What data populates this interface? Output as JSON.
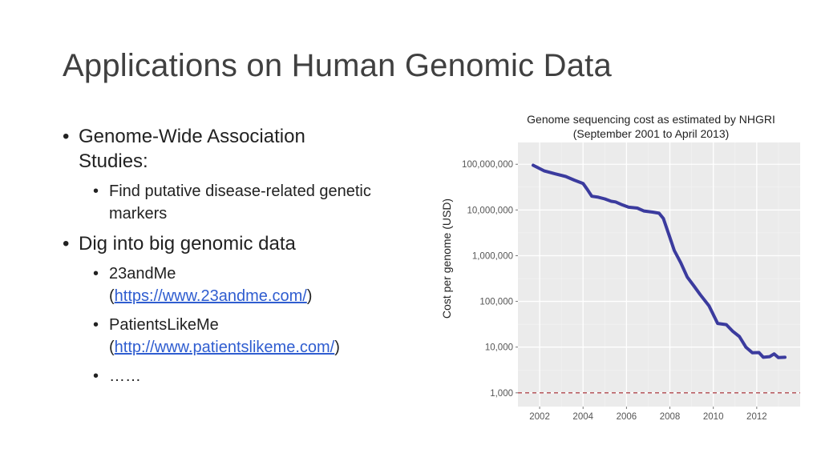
{
  "slide": {
    "title": "Applications on Human Genomic Data",
    "bullets": [
      {
        "lines": [
          "Genome-Wide Association",
          "Studies:"
        ],
        "sub": [
          {
            "lines": [
              "Find putative disease-related genetic",
              "markers"
            ]
          }
        ]
      },
      {
        "lines": [
          "Dig into big genomic data"
        ],
        "sub": [
          {
            "text": "23andMe",
            "link_open": "(",
            "link": "https://www.23andme.com/",
            "link_close": ")"
          },
          {
            "text": "PatientsLikeMe",
            "link_open": "(",
            "link": "http://www.patientslikeme.com/",
            "link_close": ")"
          },
          {
            "text": "……"
          }
        ]
      }
    ],
    "bullet_glyph": "•"
  },
  "chart_data": {
    "type": "line",
    "title": [
      "Genome sequencing cost as estimated by NHGRI",
      "(September 2001 to April 2013)"
    ],
    "xlabel": "",
    "ylabel": "Cost per genome (USD)",
    "yscale": "log10",
    "ylim": [
      500,
      300000000
    ],
    "xlim": [
      2001.0,
      2014.0
    ],
    "x_ticks": [
      2002,
      2004,
      2006,
      2008,
      2010,
      2012
    ],
    "y_ticks": [
      {
        "value": 1000,
        "label": "1,000"
      },
      {
        "value": 10000,
        "label": "10,000"
      },
      {
        "value": 100000,
        "label": "100,000"
      },
      {
        "value": 1000000,
        "label": "1,000,000"
      },
      {
        "value": 10000000,
        "label": "10,000,000"
      },
      {
        "value": 100000000,
        "label": "100,000,000"
      }
    ],
    "grid": true,
    "background": "#ebebeb",
    "line_color": "#3b3b9e",
    "reference_line": {
      "value": 1000,
      "color": "#b0474c",
      "style": "dashed"
    },
    "x": [
      2001.7,
      2002.2,
      2002.7,
      2003.2,
      2003.6,
      2004.0,
      2004.2,
      2004.4,
      2004.7,
      2005.0,
      2005.3,
      2005.5,
      2005.8,
      2006.1,
      2006.5,
      2006.8,
      2007.2,
      2007.5,
      2007.7,
      2008.0,
      2008.2,
      2008.5,
      2008.8,
      2009.1,
      2009.4,
      2009.8,
      2010.2,
      2010.6,
      2010.9,
      2011.2,
      2011.5,
      2011.8,
      2012.1,
      2012.3,
      2012.6,
      2012.8,
      2013.0,
      2013.3
    ],
    "y": [
      95000000,
      72000000,
      62000000,
      54000000,
      45000000,
      38000000,
      28000000,
      20000000,
      19000000,
      17500000,
      15500000,
      15000000,
      13000000,
      11500000,
      11000000,
      9500000,
      9000000,
      8500000,
      6500000,
      2500000,
      1300000,
      700000,
      340000,
      220000,
      140000,
      80000,
      33000,
      31000,
      22000,
      17000,
      10000,
      7500,
      7600,
      6000,
      6200,
      7100,
      5900,
      6000
    ]
  }
}
